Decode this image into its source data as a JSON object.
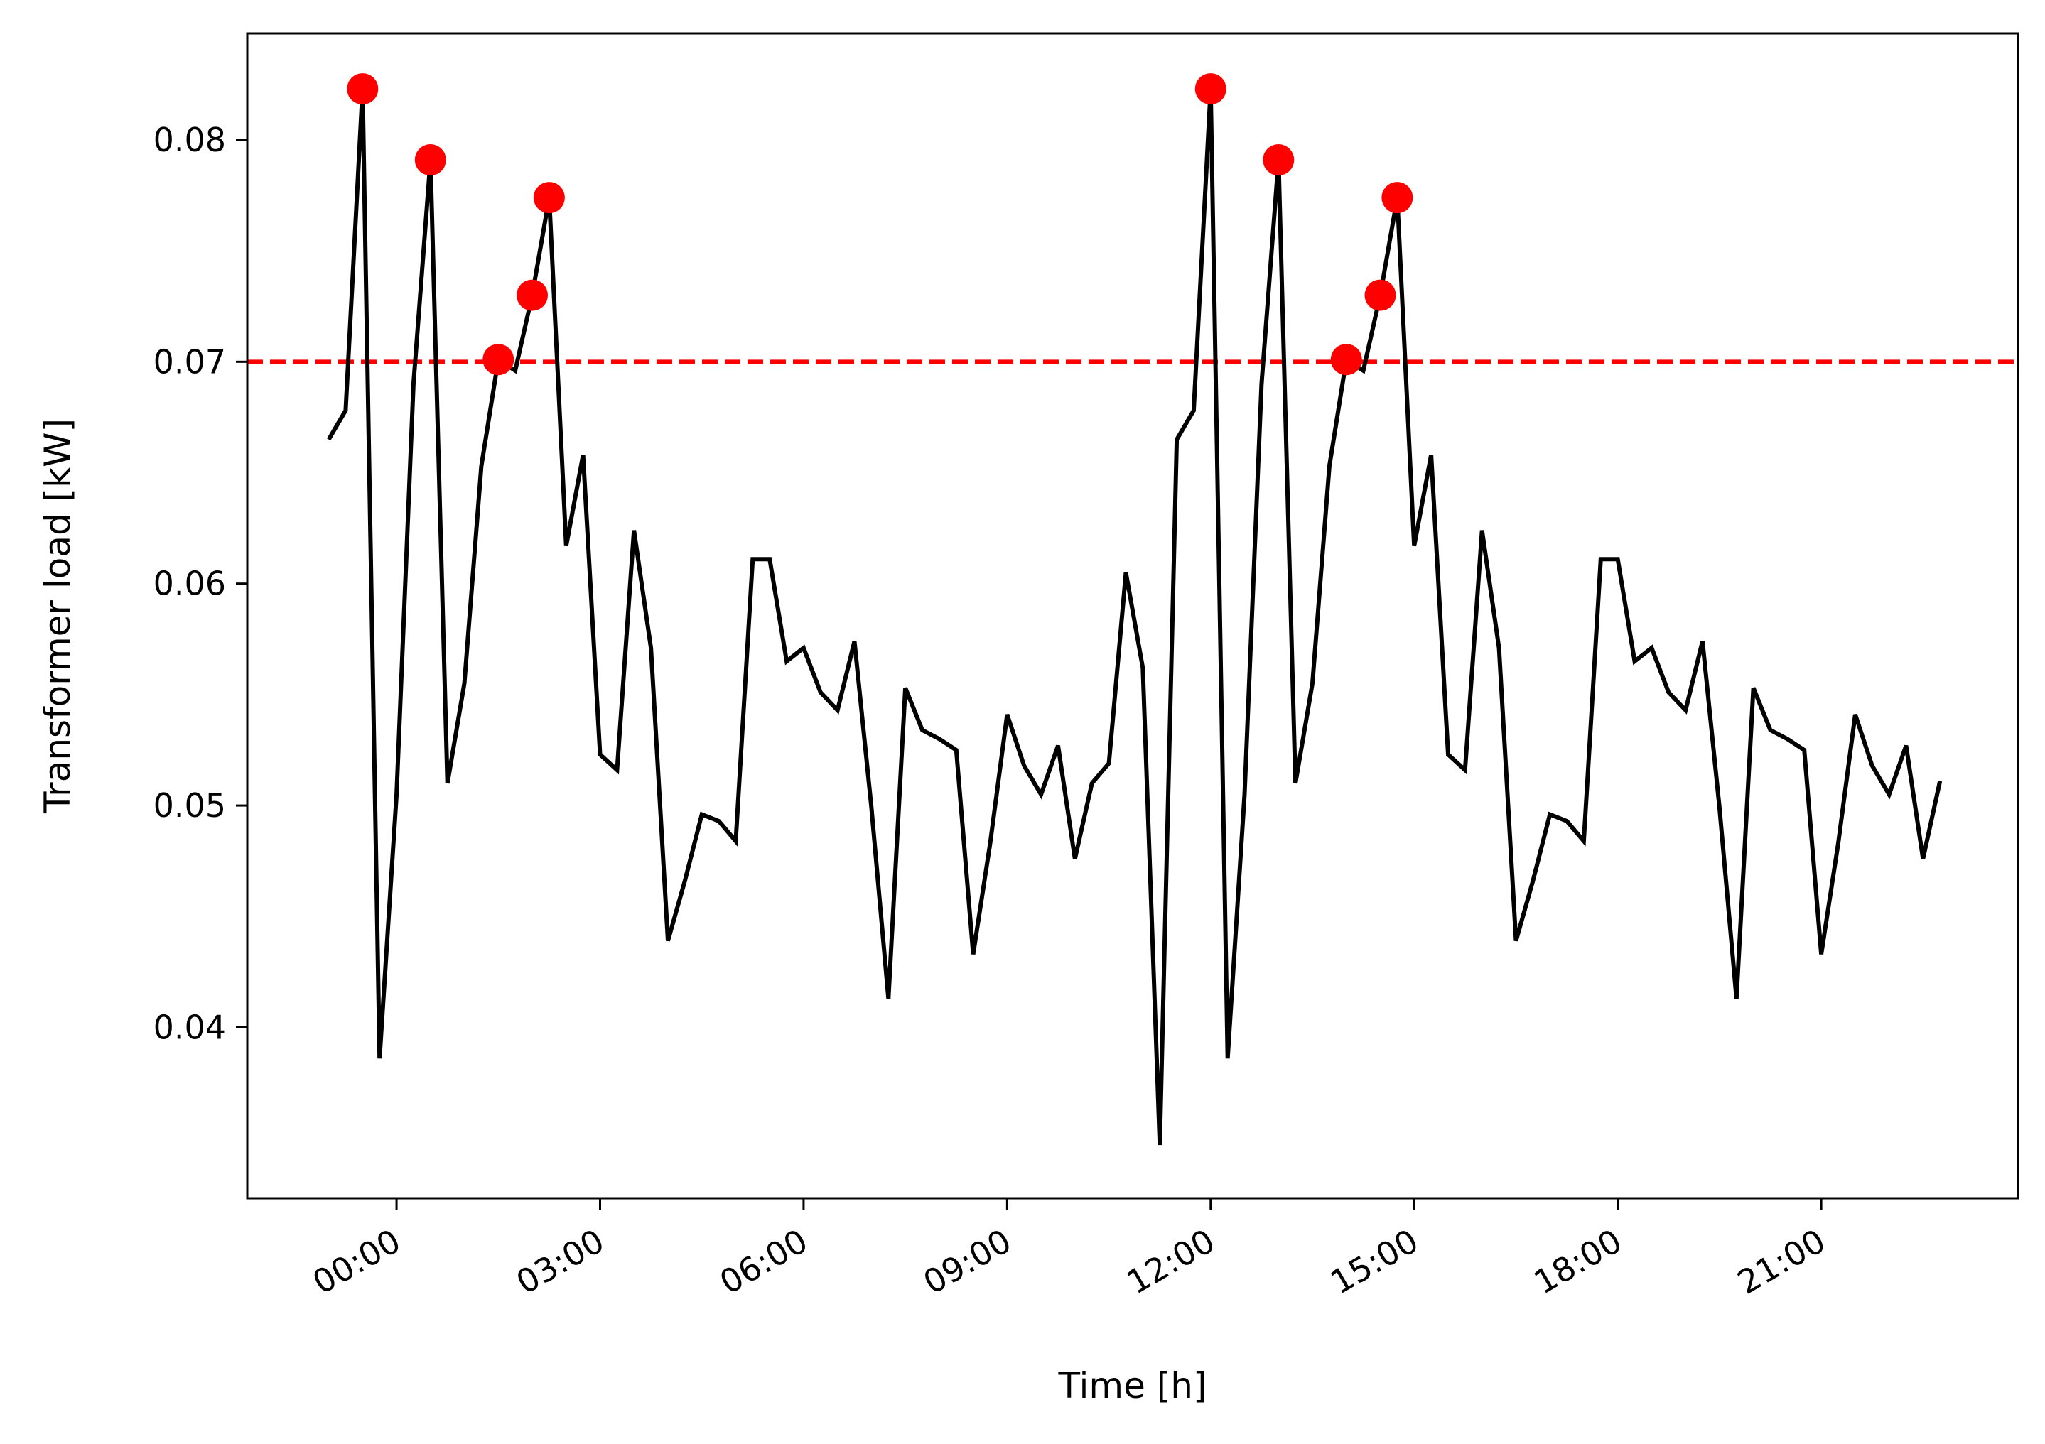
{
  "chart_data": {
    "type": "line",
    "title": "",
    "xlabel": "Time [h]",
    "ylabel": "Transformer load [kW]",
    "x_unit": "hours",
    "xlim": [
      -2.2,
      23.9
    ],
    "ylim": [
      0.0323,
      0.0848
    ],
    "x_ticks": [
      0,
      3,
      6,
      9,
      12,
      15,
      18,
      21
    ],
    "x_tick_labels": [
      "00:00",
      "03:00",
      "06:00",
      "09:00",
      "12:00",
      "15:00",
      "18:00",
      "21:00"
    ],
    "y_ticks": [
      0.04,
      0.05,
      0.06,
      0.07,
      0.08
    ],
    "y_tick_labels": [
      "0.04",
      "0.05",
      "0.06",
      "0.07",
      "0.08"
    ],
    "grid": false,
    "threshold": {
      "value": 0.07,
      "color": "#ff0000",
      "style": "dashed"
    },
    "series": [
      {
        "color": "#000000",
        "x": [
          -1.0,
          -0.75,
          -0.5,
          -0.25,
          0.0,
          0.25,
          0.5,
          0.75,
          1.0,
          1.25,
          1.5,
          1.75,
          2.0,
          2.25,
          2.5,
          2.75,
          3.0,
          3.25,
          3.5,
          3.75,
          4.0,
          4.25,
          4.5,
          4.75,
          5.0,
          5.25,
          5.5,
          5.75,
          6.0,
          6.25,
          6.5,
          6.75,
          7.0,
          7.25,
          7.5,
          7.75,
          8.0,
          8.25,
          8.5,
          8.75,
          9.0,
          9.25,
          9.5,
          9.75,
          10.0,
          10.25,
          10.5,
          10.75,
          11.0,
          11.25,
          11.5,
          11.75,
          12.0,
          12.25,
          12.5,
          12.75,
          13.0,
          13.25,
          13.5,
          13.75,
          14.0,
          14.25,
          14.5,
          14.75,
          15.0,
          15.25,
          15.5,
          15.75,
          16.0,
          16.25,
          16.5,
          16.75,
          17.0,
          17.25,
          17.5,
          17.75,
          18.0,
          18.25,
          18.5,
          18.75,
          19.0,
          19.25,
          19.5,
          19.75,
          20.0,
          20.25,
          20.5,
          20.75,
          21.0,
          21.25,
          21.5,
          21.75,
          22.0,
          22.25,
          22.5,
          22.75
        ],
        "y": [
          0.0665,
          0.0678,
          0.0823,
          0.0386,
          0.0505,
          0.069,
          0.0791,
          0.051,
          0.0555,
          0.0653,
          0.0701,
          0.0696,
          0.073,
          0.0774,
          0.0617,
          0.0658,
          0.0523,
          0.0516,
          0.0624,
          0.0571,
          0.0439,
          0.0466,
          0.0496,
          0.0493,
          0.0484,
          0.0611,
          0.0611,
          0.0565,
          0.0571,
          0.0551,
          0.0543,
          0.0574,
          0.0499,
          0.0413,
          0.0553,
          0.0534,
          0.053,
          0.0525,
          0.0433,
          0.0483,
          0.0541,
          0.0518,
          0.0505,
          0.0527,
          0.0476,
          0.051,
          0.0519,
          0.0605,
          0.0562,
          0.0347,
          0.0665,
          0.0678,
          0.0823,
          0.0386,
          0.0505,
          0.069,
          0.0791,
          0.051,
          0.0555,
          0.0653,
          0.0701,
          0.0696,
          0.073,
          0.0774,
          0.0617,
          0.0658,
          0.0523,
          0.0516,
          0.0624,
          0.0571,
          0.0439,
          0.0466,
          0.0496,
          0.0493,
          0.0484,
          0.0611,
          0.0611,
          0.0565,
          0.0571,
          0.0551,
          0.0543,
          0.0574,
          0.0499,
          0.0413,
          0.0553,
          0.0534,
          0.053,
          0.0525,
          0.0433,
          0.0483,
          0.0541,
          0.0518,
          0.0505,
          0.0527,
          0.0476,
          0.0511
        ]
      }
    ],
    "peaks": {
      "color": "#ff0000",
      "x": [
        -0.5,
        0.5,
        1.5,
        2.0,
        2.25,
        12.0,
        13.0,
        14.0,
        14.5,
        14.75
      ],
      "y": [
        0.0823,
        0.0791,
        0.0701,
        0.073,
        0.0774,
        0.0823,
        0.0791,
        0.0701,
        0.073,
        0.0774
      ]
    }
  }
}
